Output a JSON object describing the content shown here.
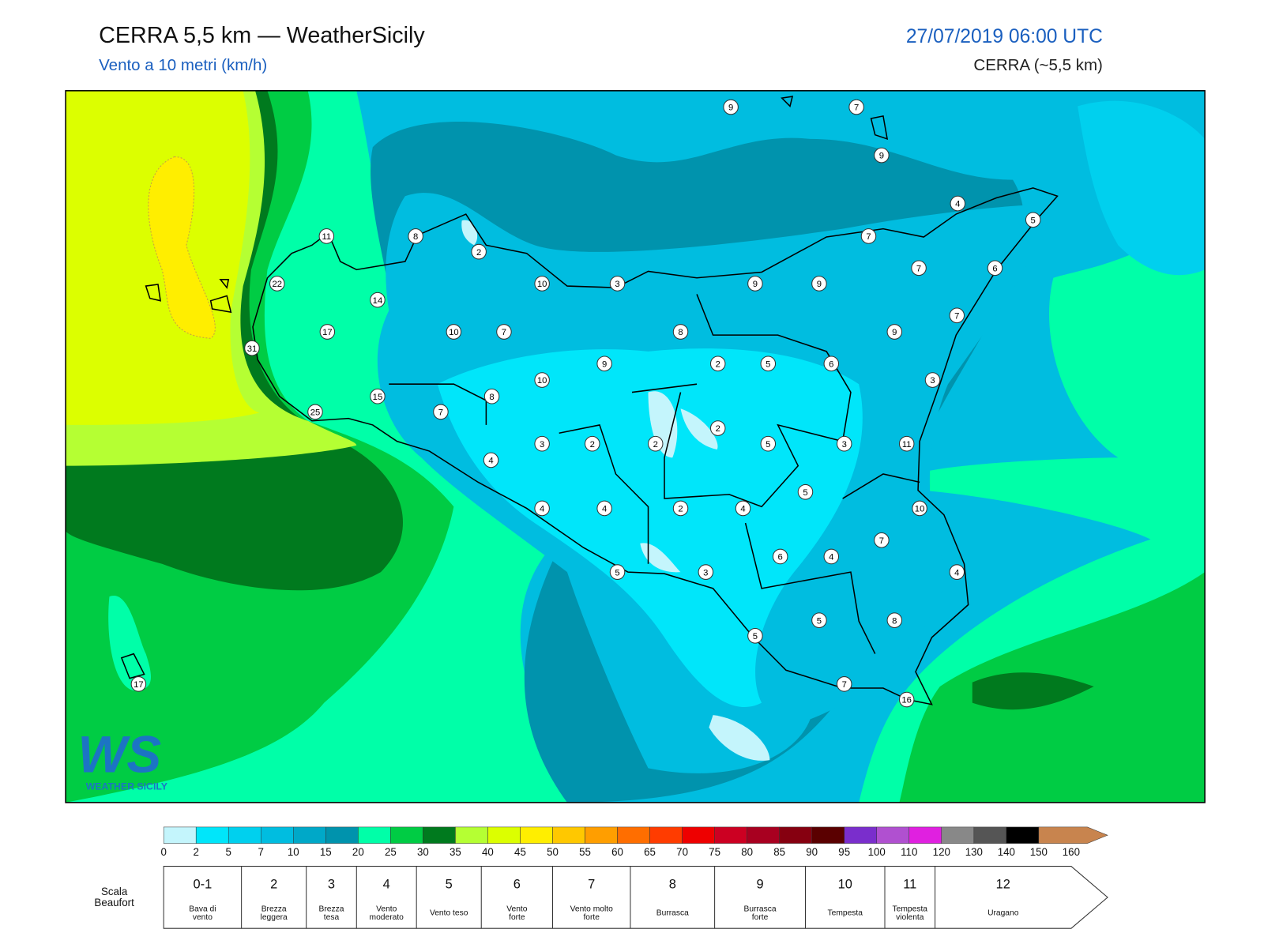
{
  "header": {
    "title": "CERRA 5,5 km — WeatherSicily",
    "subtitle": "Vento a 10 metri (km/h)",
    "datetime": "27/07/2019 06:00 UTC",
    "model": "CERRA (~5,5 km)"
  },
  "map": {
    "wind_labels": [
      9,
      7,
      9,
      4,
      5,
      11,
      8,
      2,
      7,
      6,
      7,
      22,
      10,
      3,
      9,
      9,
      14,
      7,
      17,
      10,
      7,
      8,
      9,
      31,
      9,
      2,
      5,
      6,
      3,
      10,
      15,
      8,
      25,
      7,
      2,
      3,
      2,
      2,
      5,
      3,
      11,
      4,
      5,
      4,
      4,
      2,
      4,
      10,
      7,
      6,
      4,
      5,
      3,
      4,
      5,
      8,
      5,
      7,
      16,
      17
    ]
  },
  "logo": {
    "mark": "WS",
    "name": "WEATHER SICILY"
  },
  "colorbar": {
    "ticks": [
      0,
      2,
      5,
      7,
      10,
      15,
      20,
      25,
      30,
      35,
      40,
      45,
      50,
      55,
      60,
      65,
      70,
      75,
      80,
      85,
      90,
      95,
      100,
      110,
      120,
      130,
      140,
      150,
      160
    ],
    "colors": [
      "#c4f5fc",
      "#00e6fa",
      "#00d0ee",
      "#00bde0",
      "#00a8c8",
      "#0093ad",
      "#00ffa8",
      "#00cc44",
      "#007a1e",
      "#b5ff33",
      "#dcff00",
      "#ffee00",
      "#ffc800",
      "#ff9e00",
      "#ff6e00",
      "#ff3c00",
      "#ee0000",
      "#cc0022",
      "#a80020",
      "#860010",
      "#5a0000",
      "#7a2ecc",
      "#b050d0",
      "#e020e0",
      "#888888",
      "#555555",
      "#000000",
      "#8b4a2a",
      "#c8844e"
    ]
  },
  "beaufort": {
    "title": [
      "Scala",
      "Beaufort"
    ],
    "levels": [
      {
        "force": "0-1",
        "lines": [
          "Bava di",
          "vento"
        ]
      },
      {
        "force": "2",
        "lines": [
          "Brezza",
          "leggera"
        ]
      },
      {
        "force": "3",
        "lines": [
          "Brezza",
          "tesa"
        ]
      },
      {
        "force": "4",
        "lines": [
          "Vento",
          "moderato"
        ]
      },
      {
        "force": "5",
        "lines": [
          "Vento teso"
        ]
      },
      {
        "force": "6",
        "lines": [
          "Vento",
          "forte"
        ]
      },
      {
        "force": "7",
        "lines": [
          "Vento molto",
          "forte"
        ]
      },
      {
        "force": "8",
        "lines": [
          "Burrasca"
        ]
      },
      {
        "force": "9",
        "lines": [
          "Burrasca",
          "forte"
        ]
      },
      {
        "force": "10",
        "lines": [
          "Tempesta"
        ]
      },
      {
        "force": "11",
        "lines": [
          "Tempesta",
          "violenta"
        ]
      },
      {
        "force": "12",
        "lines": [
          "Uragano"
        ]
      }
    ]
  }
}
